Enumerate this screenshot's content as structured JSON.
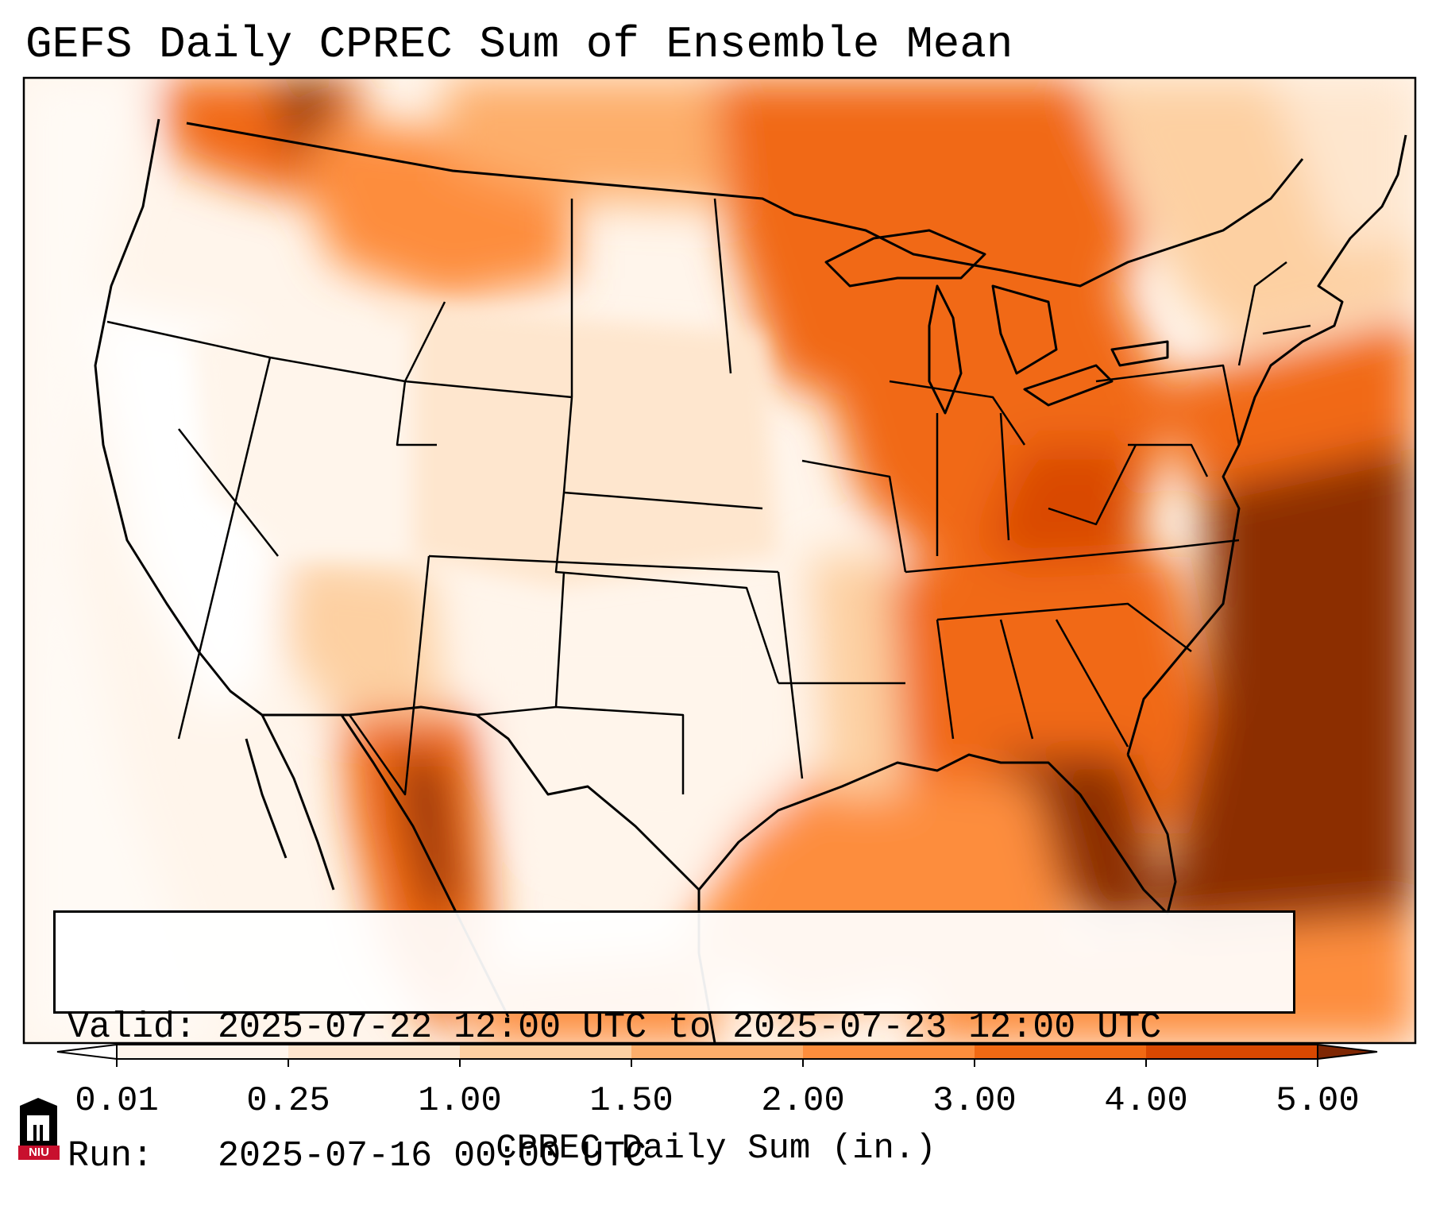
{
  "title": "GEFS Daily CPREC Sum of Ensemble Mean",
  "info": {
    "valid_label": "Valid:",
    "valid_value": "2025-07-22 12:00 UTC to 2025-07-23 12:00 UTC",
    "run_label": "Run:",
    "run_value": "2025-07-16 00:00 UTC"
  },
  "colorbar": {
    "label": "CPREC Daily Sum (in.)",
    "ticks": [
      "0.01",
      "0.25",
      "1.00",
      "1.50",
      "2.00",
      "3.00",
      "4.00",
      "5.00"
    ],
    "colors": [
      "#fff5eb",
      "#fee6ce",
      "#fdd0a2",
      "#fdae6b",
      "#fd8d3c",
      "#f16913",
      "#d94801",
      "#8c2d04"
    ],
    "under_color": "#ffffff",
    "over_color": "#7f2704",
    "extend": "both"
  },
  "logo": {
    "text": "NIU",
    "primary_color": "#c8102e",
    "secondary_color": "#000000",
    "icon": "niu-castle-logo"
  },
  "map": {
    "region": "CONUS",
    "field_colormap": "Oranges",
    "region_precip_levels": {
      "pacific_ocean_west": 0.05,
      "pacific_northwest_coast": 0.1,
      "washington_cascades": 3.0,
      "northern_idaho_montana": 1.5,
      "california_nevada": 0.01,
      "great_basin": 0.25,
      "central_rockies_plains": 0.25,
      "southern_plains_texas": 0.1,
      "mexico_sierra_madre": 4.0,
      "southwest_monsoon": 1.5,
      "upper_midwest": 2.0,
      "ontario": 2.0,
      "great_lakes": 3.0,
      "ohio_valley": 3.0,
      "appalachians": 4.0,
      "southeast": 3.0,
      "florida": 4.0,
      "gulf_of_mexico_east": 2.0,
      "atlantic_gulf_stream": 5.0,
      "new_england": 1.0,
      "quebec_maritimes": 0.25,
      "caribbean": 2.0
    }
  }
}
